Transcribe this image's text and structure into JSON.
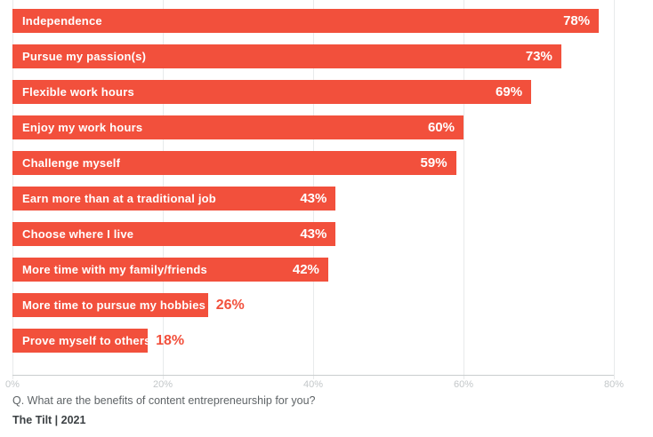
{
  "chart_data": {
    "type": "bar",
    "orientation": "horizontal",
    "categories": [
      "Independence",
      "Pursue my passion(s)",
      "Flexible work hours",
      "Enjoy my work hours",
      "Challenge myself",
      "Earn more than at a traditional job",
      "Choose where I live",
      "More time with my family/friends",
      "More time to pursue my hobbies",
      "Prove myself to others"
    ],
    "values": [
      78,
      73,
      69,
      60,
      59,
      43,
      43,
      42,
      26,
      18
    ],
    "value_labels": [
      "78%",
      "73%",
      "69%",
      "60%",
      "59%",
      "43%",
      "43%",
      "42%",
      "26%",
      "18%"
    ],
    "xlim": [
      0,
      80
    ],
    "x_ticks": [
      {
        "value": 0,
        "label": "0%"
      },
      {
        "value": 20,
        "label": "20%"
      },
      {
        "value": 40,
        "label": "40%"
      },
      {
        "value": 60,
        "label": "60%"
      },
      {
        "value": 80,
        "label": "80%"
      }
    ],
    "grid": true,
    "legend": false,
    "title": "",
    "xlabel": "",
    "ylabel": "",
    "colors": {
      "bar": "#f2503c",
      "value_outside_text": "#f2503c",
      "bar_label_text": "#ffffff",
      "gridline": "#e8eaeb",
      "axis_line": "#c9cdce",
      "tick_text": "#c3c7c9"
    }
  },
  "footer": {
    "question": "Q. What are the benefits of content entrepreneurship for you?",
    "source": "The Tilt | 2021"
  }
}
